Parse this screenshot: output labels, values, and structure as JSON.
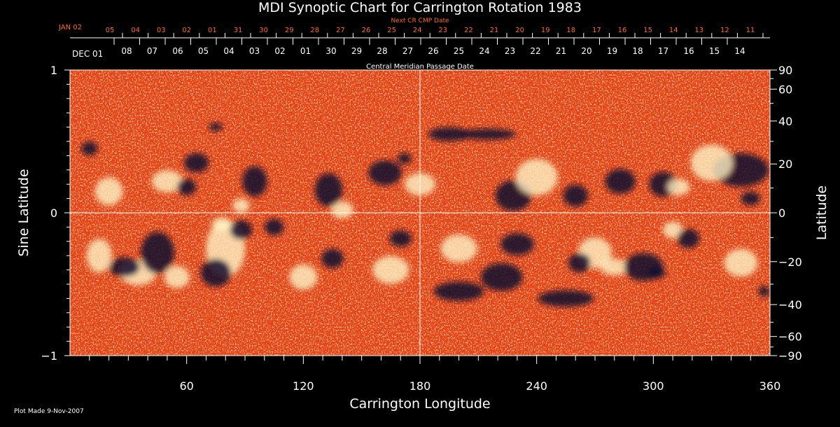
{
  "chart_data": {
    "type": "heatmap",
    "title": "MDI Synoptic Chart for Carrington Rotation 1983",
    "xlabel": "Carrington Longitude",
    "ylabel_left": "Sine Latitude",
    "ylabel_right": "Latitude",
    "xlim": [
      0,
      360
    ],
    "ylim": [
      -1,
      1
    ],
    "x_ticks": [
      "60",
      "120",
      "180",
      "240",
      "300",
      "360"
    ],
    "x_tick_values": [
      60,
      120,
      180,
      240,
      300,
      360
    ],
    "y_left_ticks": [
      "1",
      "0",
      "−1"
    ],
    "y_left_tick_values": [
      1,
      0,
      -1
    ],
    "y_right_ticks": [
      "90",
      "60",
      "40",
      "20",
      "0",
      "−20",
      "−40",
      "−60",
      "−90"
    ],
    "y_right_tick_values": [
      90,
      60,
      40,
      20,
      0,
      -20,
      -40,
      -60,
      -90
    ],
    "top_axis_red": {
      "label": "Next CR CMP Date",
      "first": "JAN 02",
      "dates": [
        "05",
        "04",
        "03",
        "02",
        "01",
        "31",
        "30",
        "29",
        "28",
        "27",
        "26",
        "25",
        "24",
        "23",
        "22",
        "21",
        "20",
        "19",
        "18",
        "17",
        "16",
        "15",
        "14",
        "13",
        "12",
        "11"
      ]
    },
    "top_axis_white": {
      "label": "Central Meridian Passage Date",
      "first": "DEC 01",
      "dates": [
        "08",
        "07",
        "06",
        "05",
        "04",
        "03",
        "02",
        "01",
        "30",
        "29",
        "28",
        "27",
        "26",
        "25",
        "24",
        "23",
        "22",
        "21",
        "20",
        "19",
        "18",
        "17",
        "16",
        "15",
        "14"
      ]
    },
    "colors": {
      "background": "#000000",
      "field_base": "#e8420a",
      "positive_polarity": "#fff7d0",
      "negative_polarity": "#0a0828",
      "red_axis_text": "#ff6a1a",
      "grid": "#ffffff"
    },
    "grid_lines": {
      "longitude": [
        180
      ],
      "sine_latitude": [
        0
      ]
    }
  },
  "footer": {
    "plot_made": "Plot Made  9-Nov-2007"
  }
}
